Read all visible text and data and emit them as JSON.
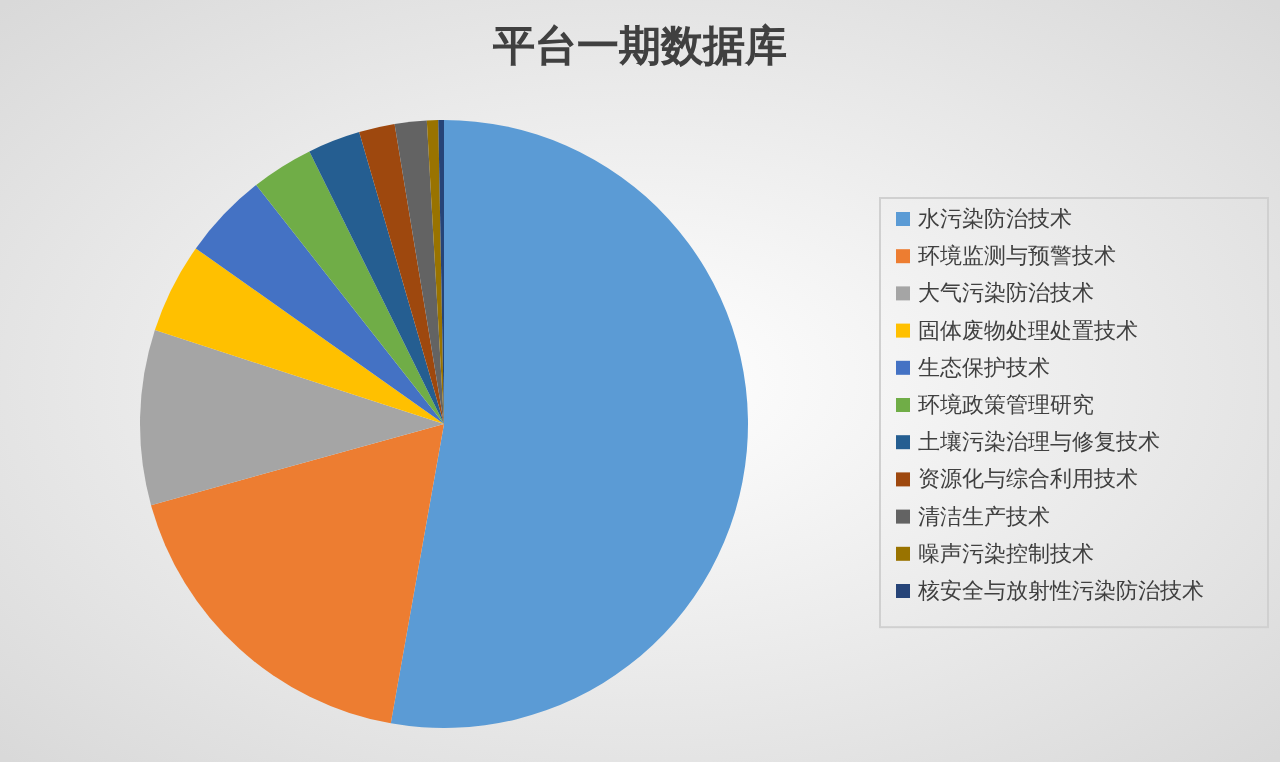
{
  "chart_data": {
    "type": "pie",
    "title": "平台一期数据库",
    "categories": [
      "水污染防治技术",
      "环境监测与预警技术",
      "大气污染防治技术",
      "固体废物处理处置技术",
      "生态保护技术",
      "环境政策管理研究",
      "土壤污染治理与修复技术",
      "资源化与综合利用技术",
      "清洁生产技术",
      "噪声污染控制技术",
      "核安全与放射性污染防治技术"
    ],
    "values": [
      52.8,
      17.9,
      9.3,
      4.8,
      4.6,
      3.3,
      2.8,
      1.9,
      1.7,
      0.6,
      0.3
    ],
    "colors": [
      "#5b9bd5",
      "#ed7d31",
      "#a5a5a5",
      "#ffc000",
      "#4472c4",
      "#70ad47",
      "#255e91",
      "#9e480e",
      "#636363",
      "#997300",
      "#264478"
    ],
    "legend": "right"
  }
}
